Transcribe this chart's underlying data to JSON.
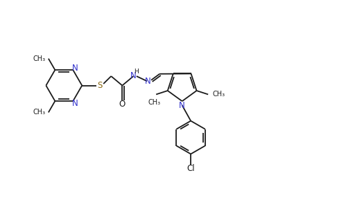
{
  "bg_color": "#ffffff",
  "bond_color": "#1a1a1a",
  "N_color": "#3030cc",
  "S_color": "#8b6914",
  "O_color": "#1a1a1a",
  "Cl_color": "#1a1a1a",
  "lw": 1.3,
  "fs": 8.5,
  "fig_width": 4.99,
  "fig_height": 3.02,
  "dpi": 100,
  "xlim": [
    0,
    10
  ],
  "ylim": [
    0,
    6
  ]
}
